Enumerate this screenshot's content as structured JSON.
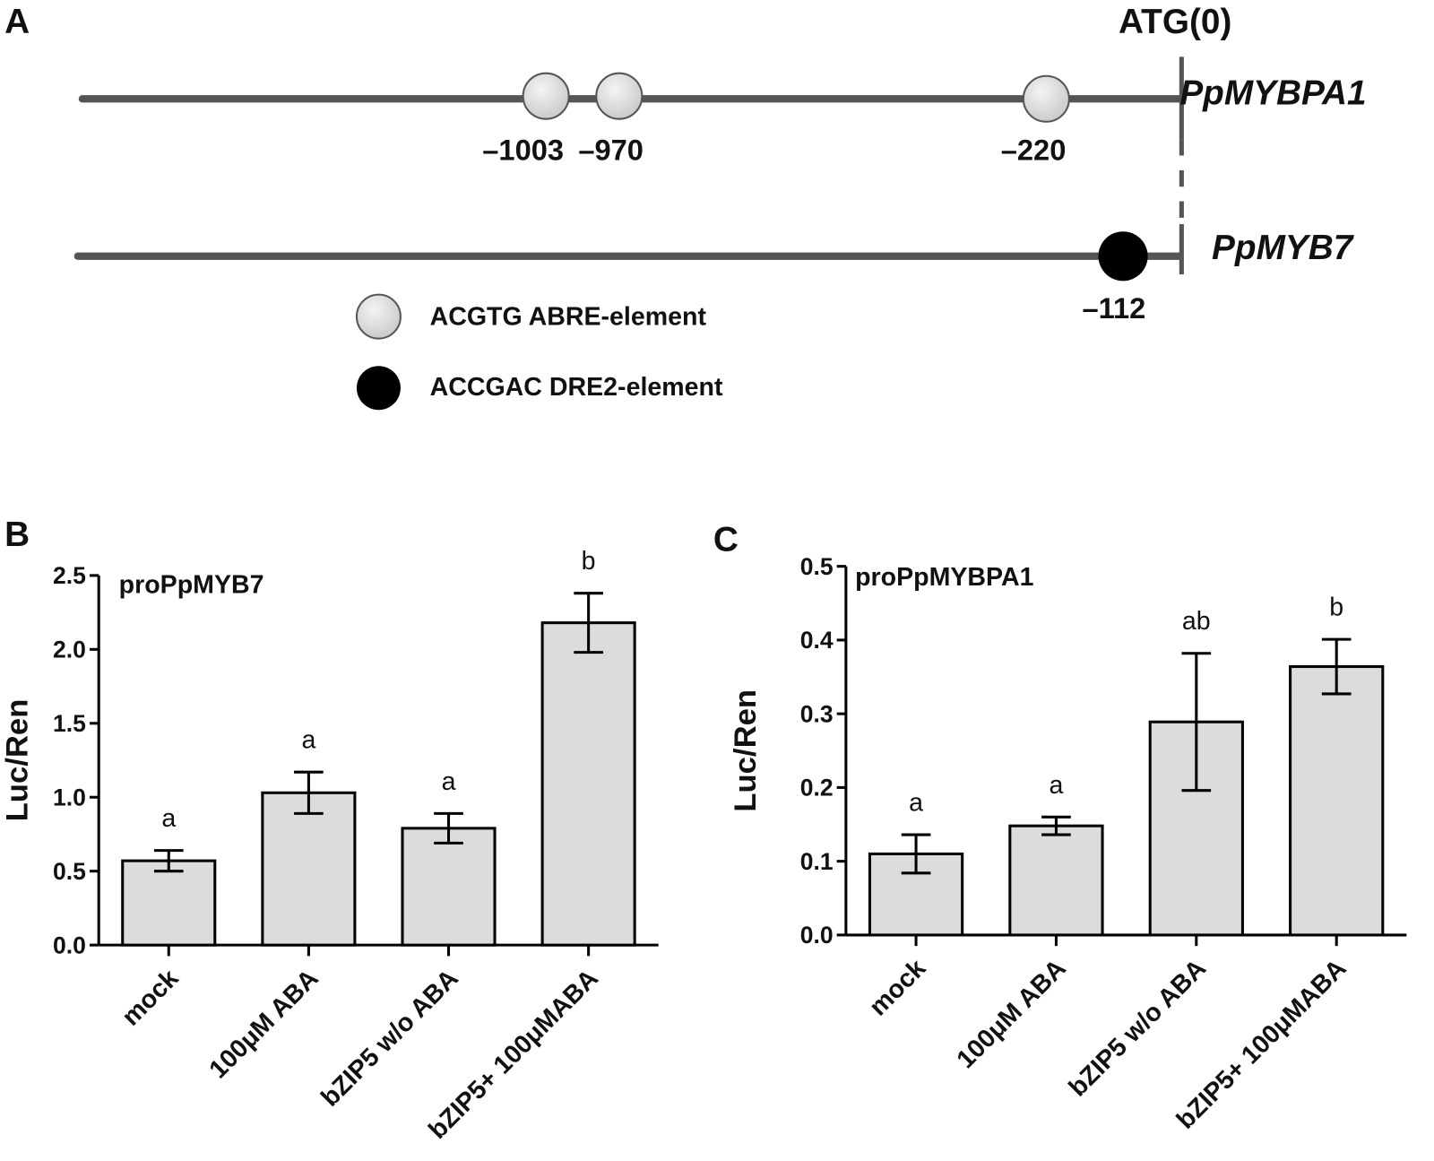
{
  "panel_a": {
    "label": "A",
    "atg_label": "ATG(0)",
    "genes": [
      {
        "name": "PpMYBPA1",
        "elements": [
          "–1003",
          "–970",
          "–220"
        ]
      },
      {
        "name": "PpMYB7",
        "elements": [
          "–112"
        ]
      }
    ],
    "legend": [
      "ACGTG ABRE-element",
      "ACCGAC DRE2-element"
    ]
  },
  "chart_data": [
    {
      "type": "bar",
      "panel_label": "B",
      "title": "proPpMYB7",
      "ylabel": "Luc/Ren",
      "categories": [
        "mock",
        "100μM ABA",
        "bZIP5 w/o ABA",
        "bZIP5+ 100μMABA"
      ],
      "values": [
        0.57,
        1.03,
        0.79,
        2.18
      ],
      "errors": [
        0.07,
        0.14,
        0.1,
        0.2
      ],
      "annotations": [
        "a",
        "a",
        "a",
        "b"
      ],
      "color": "#dcdcdc",
      "ylim": [
        0,
        2.5
      ],
      "yticks": [
        {
          "value": 0,
          "label": "0.0"
        },
        0.5,
        {
          "value": 1,
          "label": "1.0"
        },
        1.5,
        {
          "value": 2,
          "label": "2.0"
        },
        2.5
      ]
    },
    {
      "type": "bar",
      "panel_label": "C",
      "title": "proPpMYBPA1",
      "ylabel": "Luc/Ren",
      "categories": [
        "mock",
        "100μM ABA",
        "bZIP5 w/o ABA",
        "bZIP5+ 100μMABA"
      ],
      "values": [
        0.11,
        0.148,
        0.289,
        0.364
      ],
      "errors": [
        0.026,
        0.012,
        0.093,
        0.037
      ],
      "annotations": [
        "a",
        "a",
        "ab",
        "b"
      ],
      "color": "#dcdcdc",
      "ylim": [
        0,
        0.5
      ],
      "yticks": [
        {
          "value": 0,
          "label": "0.0"
        },
        0.1,
        0.2,
        0.3,
        0.4,
        0.5
      ]
    }
  ]
}
